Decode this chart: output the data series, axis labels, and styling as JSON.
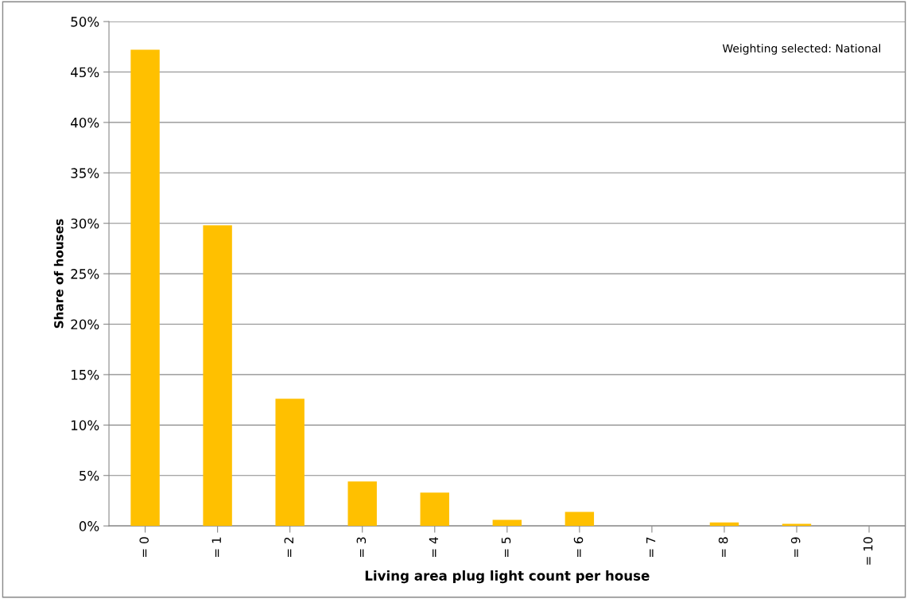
{
  "chart_data": {
    "type": "bar",
    "xlabel": "Living area plug light count per house",
    "ylabel": "Share of houses",
    "categories": [
      "= 0",
      "= 1",
      "= 2",
      "= 3",
      "= 4",
      "= 5",
      "= 6",
      "= 7",
      "= 8",
      "= 9",
      "= 10"
    ],
    "values": [
      47.2,
      29.8,
      12.6,
      4.4,
      3.3,
      0.6,
      1.4,
      0,
      0.35,
      0.2,
      null
    ],
    "color": "#ffc000",
    "ylim": [
      0,
      50
    ],
    "yticks": [
      {
        "value": 0,
        "label": "0%"
      },
      {
        "value": 5,
        "label": "5%"
      },
      {
        "value": 10,
        "label": "10%"
      },
      {
        "value": 15,
        "label": "15%"
      },
      {
        "value": 20,
        "label": "20%"
      },
      {
        "value": 25,
        "label": "25%"
      },
      {
        "value": 30,
        "label": "30%"
      },
      {
        "value": 35,
        "label": "35%"
      },
      {
        "value": 40,
        "label": "40%"
      },
      {
        "value": 45,
        "label": "45%"
      },
      {
        "value": 50,
        "label": "50%"
      }
    ],
    "grid": "y",
    "annotations": [
      "Weighting selected: National"
    ]
  }
}
